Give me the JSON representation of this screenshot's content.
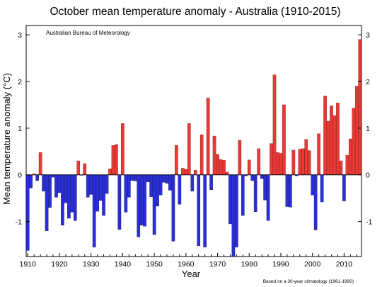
{
  "chart_data": {
    "type": "bar",
    "title": "October mean temperature anomaly - Australia (1910-2015)",
    "annotation": "Australian Bureau of Meteorology",
    "xlabel": "Year",
    "ylabel": "Mean temperature anomaly (°C)",
    "footnote": "Based on a 30-year climatology (1961-1990)",
    "xlim": [
      1909.5,
      2015.5
    ],
    "ylim": [
      -1.75,
      3.2
    ],
    "x_ticks": [
      1910,
      1920,
      1930,
      1940,
      1950,
      1960,
      1970,
      1980,
      1990,
      2000,
      2010
    ],
    "y_ticks": [
      -1,
      0,
      1,
      2,
      3
    ],
    "grid": false,
    "legend": "none",
    "colors": {
      "positive": "#e83a36",
      "negative": "#2b2fd6",
      "positive_edge": "#8b1010",
      "negative_edge": "#10106e"
    },
    "x": [
      1910,
      1911,
      1912,
      1913,
      1914,
      1915,
      1916,
      1917,
      1918,
      1919,
      1920,
      1921,
      1922,
      1923,
      1924,
      1925,
      1926,
      1927,
      1928,
      1929,
      1930,
      1931,
      1932,
      1933,
      1934,
      1935,
      1936,
      1937,
      1938,
      1939,
      1940,
      1941,
      1942,
      1943,
      1944,
      1945,
      1946,
      1947,
      1948,
      1949,
      1950,
      1951,
      1952,
      1953,
      1954,
      1955,
      1956,
      1957,
      1958,
      1959,
      1960,
      1961,
      1962,
      1963,
      1964,
      1965,
      1966,
      1967,
      1968,
      1969,
      1970,
      1971,
      1972,
      1973,
      1974,
      1975,
      1976,
      1977,
      1978,
      1979,
      1980,
      1981,
      1982,
      1983,
      1984,
      1985,
      1986,
      1987,
      1988,
      1989,
      1990,
      1991,
      1992,
      1993,
      1994,
      1995,
      1996,
      1997,
      1998,
      1999,
      2000,
      2001,
      2002,
      2003,
      2004,
      2005,
      2006,
      2007,
      2008,
      2009,
      2010,
      2011,
      2012,
      2013,
      2014,
      2015
    ],
    "values": [
      -1.62,
      -0.28,
      0.02,
      -0.12,
      0.48,
      -0.35,
      -1.2,
      -0.7,
      -0.05,
      -0.48,
      -0.38,
      -1.08,
      -0.6,
      -0.93,
      -0.8,
      -0.98,
      0.3,
      -0.01,
      0.24,
      -0.48,
      -0.42,
      -1.55,
      -0.78,
      -0.55,
      -0.87,
      -0.4,
      0.13,
      0.63,
      0.65,
      -1.17,
      1.1,
      -0.8,
      -0.48,
      -0.12,
      -0.13,
      -1.33,
      -1.08,
      -1.1,
      -0.15,
      -0.47,
      -1.28,
      -0.67,
      -0.43,
      -0.16,
      -0.18,
      -0.33,
      -1.42,
      0.63,
      -0.63,
      0.14,
      0.12,
      1.1,
      -0.35,
      0.1,
      -1.52,
      0.86,
      -1.55,
      1.65,
      -0.32,
      0.83,
      0.44,
      0.33,
      0.31,
      0.06,
      -1.05,
      -1.75,
      -1.55,
      0.74,
      -0.87,
      -0.02,
      0.32,
      -0.12,
      -0.79,
      0.56,
      -0.08,
      -0.54,
      -0.98,
      0.67,
      2.14,
      0.48,
      0.46,
      1.5,
      -0.68,
      -0.69,
      0.53,
      -0.02,
      0.55,
      0.56,
      0.76,
      0.52,
      -0.43,
      -1.18,
      0.88,
      -0.58,
      1.69,
      1.15,
      1.48,
      1.27,
      1.54,
      0.3,
      -0.56,
      0.42,
      0.77,
      1.43,
      1.9,
      2.9
    ]
  }
}
